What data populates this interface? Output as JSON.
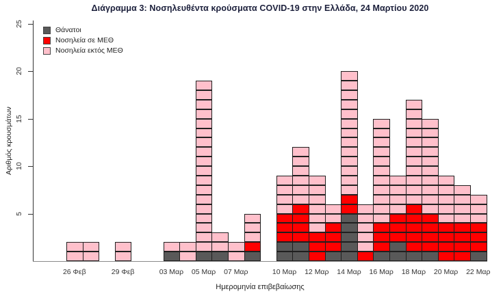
{
  "chart_data": {
    "type": "bar",
    "stacked": true,
    "unit_grid": true,
    "title": "Διάγραμμα 3: Νοσηλευθέντα κρούσματα COVID-19 στην Ελλάδα, 24 Μαρτίου 2020",
    "xlabel": "Ημερομηνία επιβεβαίωσης",
    "ylabel": "Αριθμός κρουσμάτων",
    "ylim": [
      0,
      25
    ],
    "yticks": [
      5,
      10,
      15,
      20,
      25
    ],
    "legend_position": "top-left",
    "legend": [
      {
        "key": "deaths",
        "label": "Θάνατοι",
        "color": "#595959"
      },
      {
        "key": "icu",
        "label": "Νοσηλεία σε ΜΕΘ",
        "color": "#FF0000"
      },
      {
        "key": "ward",
        "label": "Νοσηλεία εκτός ΜΕΘ",
        "color": "#FFC0CB"
      }
    ],
    "series_keys": [
      "deaths",
      "icu",
      "ward"
    ],
    "bars": [
      {
        "day": 0,
        "label": "26 Φεβ",
        "deaths": 0,
        "icu": 0,
        "ward": 2
      },
      {
        "day": 1,
        "label": "",
        "deaths": 0,
        "icu": 0,
        "ward": 2
      },
      {
        "day": 3,
        "label": "29 Φεβ",
        "deaths": 0,
        "icu": 0,
        "ward": 2
      },
      {
        "day": 6,
        "label": "03 Μαρ",
        "deaths": 1,
        "icu": 0,
        "ward": 1
      },
      {
        "day": 7,
        "label": "",
        "deaths": 0,
        "icu": 0,
        "ward": 2
      },
      {
        "day": 8,
        "label": "05 Μαρ",
        "deaths": 1,
        "icu": 0,
        "ward": 18
      },
      {
        "day": 9,
        "label": "",
        "deaths": 1,
        "icu": 0,
        "ward": 2
      },
      {
        "day": 10,
        "label": "07 Μαρ",
        "deaths": 0,
        "icu": 0,
        "ward": 2
      },
      {
        "day": 11,
        "label": "",
        "deaths": 1,
        "icu": 1,
        "ward": 3
      },
      {
        "day": 13,
        "label": "10 Μαρ",
        "deaths": 2,
        "icu": 3,
        "ward": 4
      },
      {
        "day": 14,
        "label": "",
        "deaths": 2,
        "icu": 4,
        "ward": 6
      },
      {
        "day": 15,
        "label": "12 Μαρ",
        "deaths": 0,
        "icu": 3,
        "ward": 6
      },
      {
        "day": 16,
        "label": "",
        "deaths": 1,
        "icu": 3,
        "ward": 2
      },
      {
        "day": 17,
        "label": "14 Μαρ",
        "deaths": 5,
        "icu": 2,
        "ward": 13
      },
      {
        "day": 18,
        "label": "",
        "deaths": 0,
        "icu": 1,
        "ward": 5
      },
      {
        "day": 19,
        "label": "16 Μαρ",
        "deaths": 1,
        "icu": 3,
        "ward": 11
      },
      {
        "day": 20,
        "label": "",
        "deaths": 2,
        "icu": 3,
        "ward": 4
      },
      {
        "day": 21,
        "label": "18 Μαρ",
        "deaths": 1,
        "icu": 5,
        "ward": 11
      },
      {
        "day": 22,
        "label": "",
        "deaths": 1,
        "icu": 4,
        "ward": 10
      },
      {
        "day": 23,
        "label": "20 Μαρ",
        "deaths": 0,
        "icu": 4,
        "ward": 5
      },
      {
        "day": 24,
        "label": "",
        "deaths": 0,
        "icu": 4,
        "ward": 4
      },
      {
        "day": 25,
        "label": "22 Μαρ",
        "deaths": 1,
        "icu": 3,
        "ward": 3
      }
    ]
  }
}
